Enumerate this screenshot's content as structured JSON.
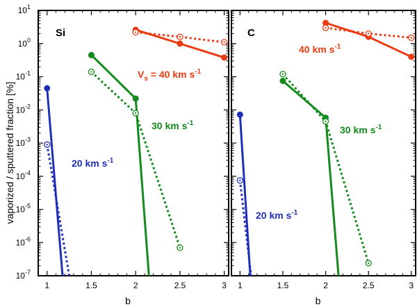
{
  "chart_data": {
    "type": "line",
    "ylabel": "vaporized / sputtered fraction [%]",
    "xlabel": "b",
    "yscale": "log",
    "ylim": [
      1e-07,
      10
    ],
    "xlim": [
      0.9,
      3.05
    ],
    "xticks": [
      "1",
      "1.5",
      "2",
      "2.5",
      "3"
    ],
    "colors": {
      "20": "#1f2fb8",
      "30": "#138a1c",
      "40": "#ea3b12"
    },
    "panels": [
      {
        "label": "Si",
        "series": [
          {
            "name": "20 km s-1 vaporized",
            "velocity": "20",
            "style": "solid",
            "marker": "filled",
            "x": [
              1,
              1.175
            ],
            "y": [
              0.045,
              1e-07
            ]
          },
          {
            "name": "20 km s-1 sputtered",
            "velocity": "20",
            "style": "dotted",
            "marker": "open",
            "x": [
              1,
              1.25
            ],
            "y": [
              0.0009,
              1e-07
            ]
          },
          {
            "name": "30 km s-1 vaporized",
            "velocity": "30",
            "style": "solid",
            "marker": "filled",
            "x": [
              1.5,
              2,
              2.15
            ],
            "y": [
              0.45,
              0.022,
              1e-07
            ]
          },
          {
            "name": "30 km s-1 sputtered",
            "velocity": "30",
            "style": "dotted",
            "marker": "open",
            "x": [
              1.5,
              2,
              2.5
            ],
            "y": [
              0.14,
              0.008,
              7e-07
            ]
          },
          {
            "name": "40 km s-1 vaporized",
            "velocity": "40",
            "style": "solid",
            "marker": "filled",
            "x": [
              2,
              2.5,
              3
            ],
            "y": [
              2.6,
              1.0,
              0.38
            ]
          },
          {
            "name": "40 km s-1 sputtered",
            "velocity": "40",
            "style": "dotted",
            "marker": "open",
            "x": [
              2,
              2.5,
              3
            ],
            "y": [
              2.2,
              1.6,
              1.1
            ]
          }
        ],
        "annotations": [
          {
            "velocity": "20",
            "text": "20 km s"
          },
          {
            "velocity": "30",
            "text": "30 km s"
          },
          {
            "velocity": "40",
            "prefix": "V",
            "sub": "s",
            "text": " = 40 km s"
          }
        ]
      },
      {
        "label": "C",
        "series": [
          {
            "name": "20 km s-1 vaporized",
            "velocity": "20",
            "style": "solid",
            "marker": "filled",
            "x": [
              1,
              1.12
            ],
            "y": [
              0.0072,
              1e-07
            ]
          },
          {
            "name": "20 km s-1 sputtered",
            "velocity": "20",
            "style": "dotted",
            "marker": "open",
            "x": [
              1,
              1.13
            ],
            "y": [
              7.5e-05,
              1e-07
            ]
          },
          {
            "name": "30 km s-1 vaporized",
            "velocity": "30",
            "style": "solid",
            "marker": "filled",
            "x": [
              1.5,
              2,
              2.15
            ],
            "y": [
              0.075,
              0.0058,
              1e-07
            ]
          },
          {
            "name": "30 km s-1 sputtered",
            "velocity": "30",
            "style": "dotted",
            "marker": "open",
            "x": [
              1.5,
              2,
              2.5
            ],
            "y": [
              0.12,
              0.0045,
              2.4e-07
            ]
          },
          {
            "name": "40 km s-1 vaporized",
            "velocity": "40",
            "style": "solid",
            "marker": "filled",
            "x": [
              2,
              2.5,
              3
            ],
            "y": [
              4.2,
              1.6,
              0.4
            ]
          },
          {
            "name": "40 km s-1 sputtered",
            "velocity": "40",
            "style": "dotted",
            "marker": "open",
            "x": [
              2,
              2.5,
              3
            ],
            "y": [
              3.0,
              2.0,
              1.5
            ]
          }
        ],
        "annotations": [
          {
            "velocity": "20",
            "text": "20 km s"
          },
          {
            "velocity": "30",
            "text": "30 km s"
          },
          {
            "velocity": "40",
            "text": "40 km s"
          }
        ]
      }
    ]
  }
}
